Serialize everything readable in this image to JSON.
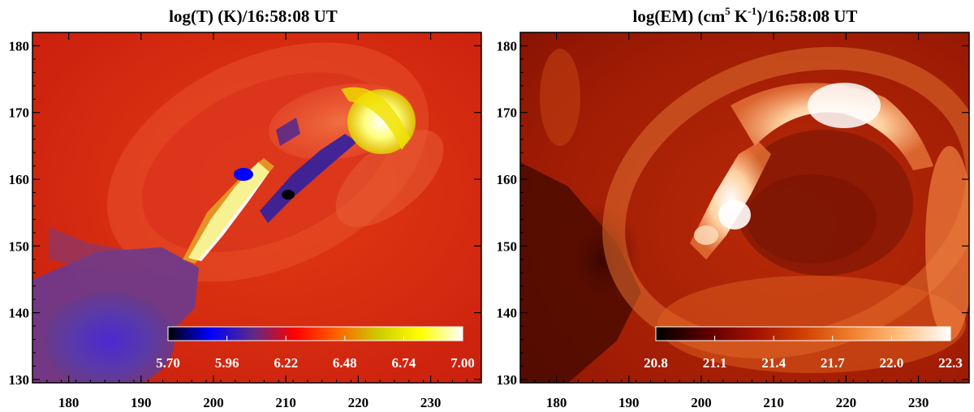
{
  "chart_data": [
    {
      "type": "heatmap",
      "title_parts": [
        "log(T) (K)/16:58:08 UT"
      ],
      "xlabel": "",
      "ylabel": "",
      "xlim": [
        175,
        237
      ],
      "ylim": [
        129.5,
        182
      ],
      "x_ticks": [
        "180",
        "190",
        "200",
        "210",
        "220",
        "230"
      ],
      "x_tick_values": [
        180,
        190,
        200,
        210,
        220,
        230
      ],
      "y_ticks": [
        "180",
        "170",
        "160",
        "150",
        "140",
        "130"
      ],
      "y_tick_values": [
        180,
        170,
        160,
        150,
        140,
        130
      ],
      "colorbar": {
        "min": 5.7,
        "max": 7.0,
        "tick_labels": [
          "5.70",
          "5.96",
          "6.22",
          "6.48",
          "6.74",
          "7.00"
        ],
        "colors": [
          "#000000",
          "#0000ff",
          "#5a2a8a",
          "#ff0000",
          "#ff6000",
          "#cccc00",
          "#ffff00",
          "#ffffff"
        ]
      }
    },
    {
      "type": "heatmap",
      "title_parts": [
        "log(EM) (cm",
        "5",
        " K",
        "-1",
        ")/16:58:08 UT"
      ],
      "xlabel": "",
      "ylabel": "",
      "xlim": [
        175,
        237
      ],
      "ylim": [
        129.5,
        182
      ],
      "x_ticks": [
        "180",
        "190",
        "200",
        "210",
        "220",
        "230"
      ],
      "x_tick_values": [
        180,
        190,
        200,
        210,
        220,
        230
      ],
      "y_ticks": [
        "180",
        "170",
        "160",
        "150",
        "140",
        "130"
      ],
      "y_tick_values": [
        180,
        170,
        160,
        150,
        140,
        130
      ],
      "colorbar": {
        "min": 20.8,
        "max": 22.3,
        "tick_labels": [
          "20.8",
          "21.1",
          "21.4",
          "21.7",
          "22.0",
          "22.3"
        ],
        "colors": [
          "#000000",
          "#5a0000",
          "#a01000",
          "#d04000",
          "#f08030",
          "#ffc080",
          "#ffffff"
        ]
      }
    }
  ]
}
